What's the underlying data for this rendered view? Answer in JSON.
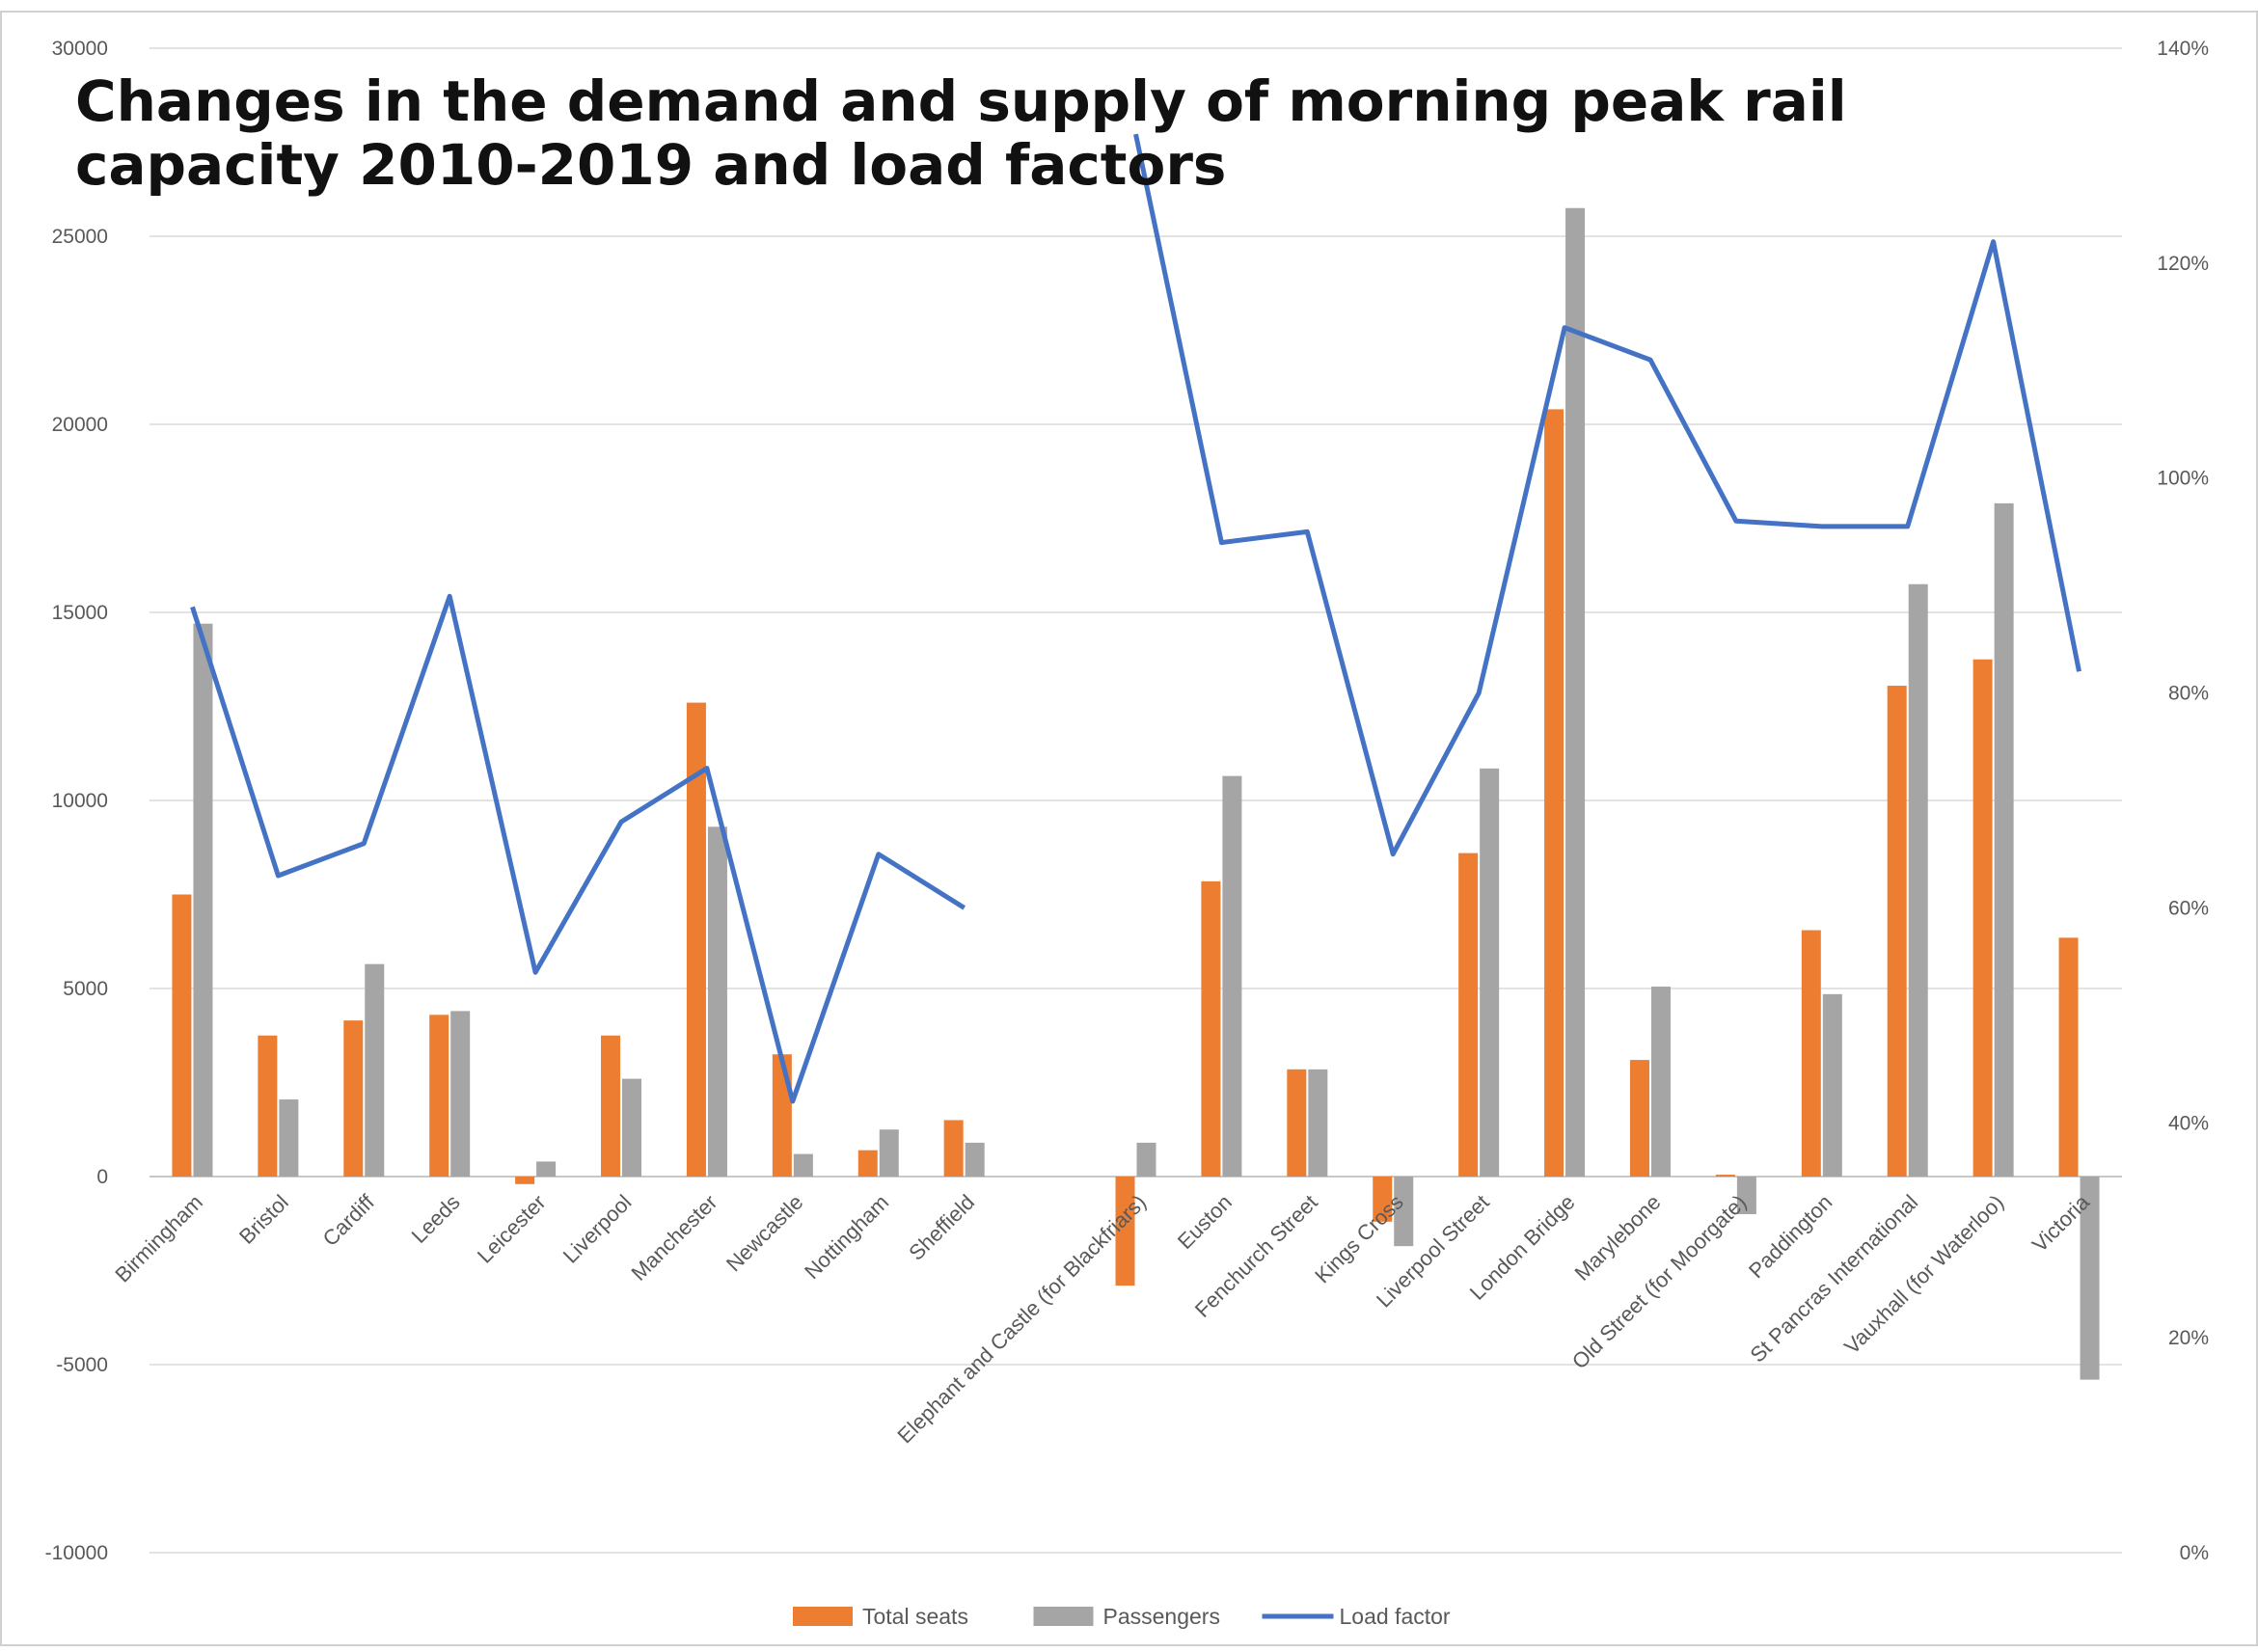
{
  "chart_data": {
    "type": "bar",
    "title": "Changes in the demand and supply of morning peak rail capacity 2010-2019 and load factors",
    "categories": [
      "Birmingham",
      "Bristol",
      "Cardiff",
      "Leeds",
      "Leicester",
      "Liverpool",
      "Manchester",
      "Newcastle",
      "Nottingham",
      "Sheffield",
      "",
      "Elephant and Castle (for Blackfriars)",
      "Euston",
      "Fenchurch Street",
      "Kings Cross",
      "Liverpool Street",
      "London Bridge",
      "Marylebone",
      "Old Street (for Moorgate)",
      "Paddington",
      "St Pancras International",
      "Vauxhall (for Waterloo)",
      "Victoria"
    ],
    "series": [
      {
        "name": "Total seats",
        "type": "bar",
        "axis": "left",
        "color": "#ED7D31",
        "values": [
          7500,
          3750,
          4150,
          4300,
          -200,
          3750,
          12600,
          3250,
          700,
          1500,
          null,
          -2900,
          7850,
          2850,
          -1200,
          8600,
          20400,
          3100,
          50,
          6550,
          13050,
          13750,
          6350
        ]
      },
      {
        "name": "Passengers",
        "type": "bar",
        "axis": "left",
        "color": "#A5A5A5",
        "values": [
          14700,
          2050,
          5650,
          4400,
          400,
          2600,
          9300,
          600,
          1250,
          900,
          null,
          900,
          10650,
          2850,
          -1850,
          10850,
          25750,
          5050,
          -1000,
          4850,
          15750,
          17900,
          -5400
        ]
      },
      {
        "name": "Load factor",
        "type": "line",
        "axis": "right",
        "color": "#4472C4",
        "values": [
          0.88,
          0.63,
          0.66,
          0.89,
          0.54,
          0.68,
          0.73,
          0.42,
          0.65,
          0.6,
          null,
          1.32,
          0.94,
          0.95,
          0.65,
          0.8,
          1.14,
          1.11,
          0.96,
          0.955,
          0.955,
          1.22,
          0.82
        ]
      }
    ],
    "y_left": {
      "min": -10000,
      "max": 30000,
      "ticks": [
        -10000,
        -5000,
        0,
        5000,
        10000,
        15000,
        20000,
        25000,
        30000
      ]
    },
    "y_right": {
      "min": 0,
      "max": 1.4,
      "ticks": [
        "0%",
        "20%",
        "40%",
        "60%",
        "80%",
        "100%",
        "120%",
        "140%"
      ]
    },
    "grid": true,
    "legend_position": "bottom-center",
    "legend": [
      "Total seats",
      "Passengers",
      "Load factor"
    ]
  }
}
